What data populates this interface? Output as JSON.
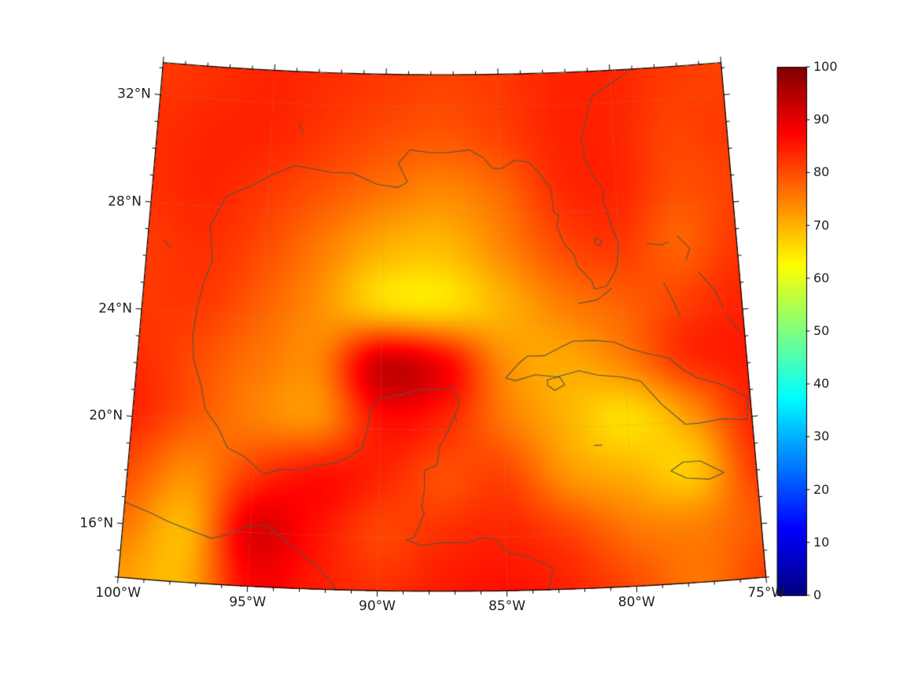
{
  "chart_data": {
    "type": "heatmap",
    "title": "",
    "projection": {
      "type": "lambert_conformal_conic",
      "center_lon": -87.5,
      "cone_constant": 0.4,
      "lon_range": [
        -100,
        -75
      ],
      "lat_range": [
        14,
        33.2
      ]
    },
    "field": {
      "lons": [
        -100,
        -97.5,
        -95,
        -92.5,
        -90,
        -87.5,
        -85,
        -82.5,
        -80,
        -77.5,
        -75
      ],
      "lats": [
        33.0,
        30.89,
        28.78,
        26.67,
        24.56,
        22.44,
        20.33,
        18.22,
        16.11,
        14.0
      ],
      "values": [
        [
          82,
          83,
          84,
          83,
          82,
          81,
          82,
          84,
          84,
          82,
          81
        ],
        [
          83,
          84,
          84,
          82,
          80,
          79,
          81,
          84,
          84,
          81,
          82
        ],
        [
          83,
          84,
          82,
          79,
          76,
          74,
          77,
          83,
          84,
          80,
          81
        ],
        [
          82,
          83,
          80,
          75,
          70,
          69,
          74,
          80,
          82,
          78,
          82
        ],
        [
          82,
          82,
          78,
          73,
          67,
          66,
          70,
          75,
          78,
          81,
          84
        ],
        [
          83,
          80,
          76,
          75,
          92,
          88,
          74,
          71,
          75,
          83,
          85
        ],
        [
          84,
          79,
          75,
          74,
          86,
          84,
          76,
          70,
          66,
          73,
          84
        ],
        [
          80,
          74,
          82,
          86,
          84,
          80,
          81,
          73,
          70,
          68,
          82
        ],
        [
          76,
          70,
          90,
          86,
          81,
          83,
          84,
          81,
          76,
          75,
          79
        ],
        [
          72,
          70,
          87,
          85,
          83,
          85,
          86,
          84,
          80,
          76,
          81
        ]
      ]
    },
    "graticule": {
      "lons": [
        -95,
        -90,
        -85,
        -80
      ],
      "lats": [
        16,
        20,
        24,
        28,
        32
      ]
    },
    "minor_tick_interval_deg": 1,
    "xticks": [
      {
        "value": -100,
        "label": "100°W"
      },
      {
        "value": -95,
        "label": "95°W"
      },
      {
        "value": -90,
        "label": "90°W"
      },
      {
        "value": -85,
        "label": "85°W"
      },
      {
        "value": -80,
        "label": "80°W"
      },
      {
        "value": -75,
        "label": "75°W"
      }
    ],
    "yticks": [
      {
        "value": 32,
        "label": "32°N"
      },
      {
        "value": 28,
        "label": "28°N"
      },
      {
        "value": 24,
        "label": "24°N"
      },
      {
        "value": 20,
        "label": "20°N"
      },
      {
        "value": 16,
        "label": "16°N"
      }
    ],
    "colorbar": {
      "min": 0,
      "max": 100,
      "colormap": "jet",
      "ticks": [
        {
          "value": 0,
          "label": "0"
        },
        {
          "value": 10,
          "label": "10"
        },
        {
          "value": 20,
          "label": "20"
        },
        {
          "value": 30,
          "label": "30"
        },
        {
          "value": 40,
          "label": "40"
        },
        {
          "value": 50,
          "label": "50"
        },
        {
          "value": 60,
          "label": "60"
        },
        {
          "value": 70,
          "label": "70"
        },
        {
          "value": 80,
          "label": "80"
        },
        {
          "value": 90,
          "label": "90"
        },
        {
          "value": 100,
          "label": "100"
        }
      ]
    },
    "colors": {
      "coastline": "#545444",
      "frame": "#000000",
      "graticule": "#9a9a85",
      "tick": "#000000",
      "label": "#1f1f1f",
      "background": "#ffffff"
    },
    "coastlines": [
      {
        "name": "us-gulf-and-atlantic-coast",
        "points": [
          [
            -97.2,
            26.0
          ],
          [
            -97.4,
            27.3
          ],
          [
            -96.8,
            28.4
          ],
          [
            -95.7,
            28.9
          ],
          [
            -94.9,
            29.3
          ],
          [
            -93.9,
            29.7
          ],
          [
            -92.3,
            29.5
          ],
          [
            -91.4,
            29.5
          ],
          [
            -90.3,
            29.1
          ],
          [
            -89.4,
            29.0
          ],
          [
            -89.0,
            29.2
          ],
          [
            -89.4,
            29.9
          ],
          [
            -88.9,
            30.4
          ],
          [
            -88.0,
            30.3
          ],
          [
            -87.3,
            30.3
          ],
          [
            -86.3,
            30.4
          ],
          [
            -85.7,
            30.1
          ],
          [
            -85.3,
            29.7
          ],
          [
            -84.9,
            29.7
          ],
          [
            -84.3,
            30.0
          ],
          [
            -83.7,
            29.9
          ],
          [
            -83.3,
            29.5
          ],
          [
            -82.8,
            28.9
          ],
          [
            -82.7,
            28.0
          ],
          [
            -82.5,
            27.9
          ],
          [
            -82.6,
            27.5
          ],
          [
            -82.3,
            26.8
          ],
          [
            -81.9,
            26.4
          ],
          [
            -81.8,
            26.0
          ],
          [
            -81.2,
            25.4
          ],
          [
            -81.1,
            25.1
          ],
          [
            -80.6,
            25.2
          ],
          [
            -80.3,
            25.6
          ],
          [
            -80.1,
            26.0
          ],
          [
            -80.0,
            26.8
          ],
          [
            -80.2,
            27.2
          ],
          [
            -80.4,
            27.9
          ],
          [
            -80.6,
            28.4
          ],
          [
            -80.5,
            28.7
          ],
          [
            -81.0,
            29.4
          ],
          [
            -81.3,
            30.0
          ],
          [
            -81.4,
            30.7
          ],
          [
            -81.2,
            31.3
          ],
          [
            -81.0,
            31.9
          ],
          [
            -80.8,
            32.3
          ],
          [
            -80.2,
            32.6
          ],
          [
            -79.6,
            32.9
          ],
          [
            -79.1,
            33.2
          ]
        ]
      },
      {
        "name": "mexico-gulf-caribbean-coast",
        "points": [
          [
            -97.2,
            26.0
          ],
          [
            -97.5,
            25.2
          ],
          [
            -97.7,
            24.2
          ],
          [
            -97.8,
            23.2
          ],
          [
            -97.7,
            22.3
          ],
          [
            -97.3,
            21.3
          ],
          [
            -97.1,
            20.5
          ],
          [
            -96.5,
            19.8
          ],
          [
            -96.1,
            19.1
          ],
          [
            -95.4,
            18.8
          ],
          [
            -94.6,
            18.2
          ],
          [
            -93.9,
            18.4
          ],
          [
            -93.2,
            18.4
          ],
          [
            -92.5,
            18.6
          ],
          [
            -91.8,
            18.7
          ],
          [
            -91.3,
            18.9
          ],
          [
            -90.7,
            19.3
          ],
          [
            -90.5,
            20.0
          ],
          [
            -90.4,
            20.8
          ],
          [
            -90.1,
            21.1
          ],
          [
            -89.2,
            21.3
          ],
          [
            -88.3,
            21.5
          ],
          [
            -87.5,
            21.5
          ],
          [
            -87.1,
            21.6
          ],
          [
            -86.8,
            21.1
          ],
          [
            -86.9,
            20.7
          ],
          [
            -87.4,
            19.7
          ],
          [
            -87.6,
            19.4
          ],
          [
            -87.7,
            18.7
          ],
          [
            -88.2,
            18.5
          ],
          [
            -88.2,
            17.8
          ],
          [
            -88.3,
            17.1
          ],
          [
            -88.2,
            16.9
          ],
          [
            -88.6,
            16.0
          ],
          [
            -88.9,
            15.9
          ],
          [
            -88.3,
            15.7
          ],
          [
            -87.5,
            15.8
          ],
          [
            -86.5,
            15.8
          ],
          [
            -85.9,
            16.0
          ],
          [
            -85.4,
            15.9
          ],
          [
            -84.9,
            15.4
          ],
          [
            -84.3,
            15.3
          ],
          [
            -83.6,
            15.0
          ],
          [
            -83.2,
            14.8
          ],
          [
            -83.4,
            14.0
          ]
        ]
      },
      {
        "name": "mexico-pacific-coast",
        "points": [
          [
            -100.0,
            16.8
          ],
          [
            -99.0,
            16.5
          ],
          [
            -98.2,
            16.2
          ],
          [
            -97.2,
            15.9
          ],
          [
            -96.5,
            15.7
          ],
          [
            -95.8,
            15.9
          ],
          [
            -95.2,
            16.2
          ],
          [
            -94.4,
            16.3
          ],
          [
            -93.8,
            15.9
          ],
          [
            -93.0,
            15.3
          ],
          [
            -92.3,
            14.8
          ],
          [
            -91.8,
            14.3
          ],
          [
            -91.6,
            14.0
          ]
        ]
      },
      {
        "name": "cuba",
        "points": [
          [
            -84.9,
            21.9
          ],
          [
            -84.4,
            22.4
          ],
          [
            -84.0,
            22.7
          ],
          [
            -83.3,
            22.7
          ],
          [
            -82.6,
            23.0
          ],
          [
            -82.1,
            23.2
          ],
          [
            -81.2,
            23.2
          ],
          [
            -80.4,
            23.1
          ],
          [
            -79.7,
            22.8
          ],
          [
            -79.0,
            22.6
          ],
          [
            -78.2,
            22.4
          ],
          [
            -77.6,
            21.9
          ],
          [
            -77.1,
            21.6
          ],
          [
            -76.2,
            21.3
          ],
          [
            -75.6,
            21.0
          ],
          [
            -75.1,
            20.7
          ],
          [
            -75.2,
            19.9
          ],
          [
            -76.2,
            20.0
          ],
          [
            -77.2,
            19.9
          ],
          [
            -77.7,
            19.9
          ],
          [
            -78.6,
            20.7
          ],
          [
            -79.4,
            21.6
          ],
          [
            -80.2,
            21.8
          ],
          [
            -81.1,
            21.9
          ],
          [
            -81.9,
            22.1
          ],
          [
            -82.8,
            21.9
          ],
          [
            -83.7,
            22.0
          ],
          [
            -84.5,
            21.8
          ],
          [
            -84.9,
            21.9
          ]
        ]
      },
      {
        "name": "isla-juventud",
        "points": [
          [
            -83.2,
            21.8
          ],
          [
            -82.7,
            21.9
          ],
          [
            -82.5,
            21.6
          ],
          [
            -82.9,
            21.4
          ],
          [
            -83.2,
            21.6
          ],
          [
            -83.2,
            21.8
          ]
        ]
      },
      {
        "name": "jamaica",
        "points": [
          [
            -78.4,
            18.2
          ],
          [
            -77.9,
            18.5
          ],
          [
            -77.2,
            18.5
          ],
          [
            -76.3,
            18.0
          ],
          [
            -76.9,
            17.8
          ],
          [
            -77.8,
            17.9
          ],
          [
            -78.4,
            18.2
          ]
        ]
      },
      {
        "name": "florida-keys",
        "points": [
          [
            -80.4,
            25.1
          ],
          [
            -81.0,
            24.7
          ],
          [
            -81.8,
            24.6
          ]
        ]
      },
      {
        "name": "lake-okeechobee",
        "points": [
          [
            -81.0,
            27.0
          ],
          [
            -80.7,
            26.9
          ],
          [
            -80.8,
            26.7
          ],
          [
            -81.0,
            26.8
          ],
          [
            -81.0,
            27.0
          ]
        ]
      },
      {
        "name": "bahamas-grand-bahama",
        "points": [
          [
            -78.8,
            26.7
          ],
          [
            -78.2,
            26.6
          ],
          [
            -77.9,
            26.7
          ]
        ]
      },
      {
        "name": "bahamas-abaco",
        "points": [
          [
            -77.5,
            26.9
          ],
          [
            -77.0,
            26.4
          ],
          [
            -77.2,
            26.0
          ]
        ]
      },
      {
        "name": "bahamas-andros",
        "points": [
          [
            -78.2,
            25.2
          ],
          [
            -77.9,
            24.6
          ],
          [
            -77.6,
            23.9
          ]
        ]
      },
      {
        "name": "bahamas-eleuthera",
        "points": [
          [
            -76.7,
            25.5
          ],
          [
            -76.1,
            24.8
          ],
          [
            -75.8,
            24.1
          ]
        ]
      },
      {
        "name": "bahamas-long-island",
        "points": [
          [
            -75.7,
            23.8
          ],
          [
            -75.2,
            23.2
          ]
        ]
      },
      {
        "name": "grand-cayman",
        "points": [
          [
            -81.4,
            19.3
          ],
          [
            -81.1,
            19.3
          ]
        ]
      },
      {
        "name": "cozumel",
        "points": [
          [
            -87.0,
            20.6
          ],
          [
            -86.9,
            20.3
          ]
        ]
      },
      {
        "name": "falcon-reservoir",
        "points": [
          [
            -99.3,
            26.6
          ],
          [
            -99.0,
            26.4
          ]
        ]
      },
      {
        "name": "toledo-bend-reservoir",
        "points": [
          [
            -93.8,
            31.3
          ],
          [
            -93.6,
            30.9
          ]
        ]
      }
    ]
  }
}
